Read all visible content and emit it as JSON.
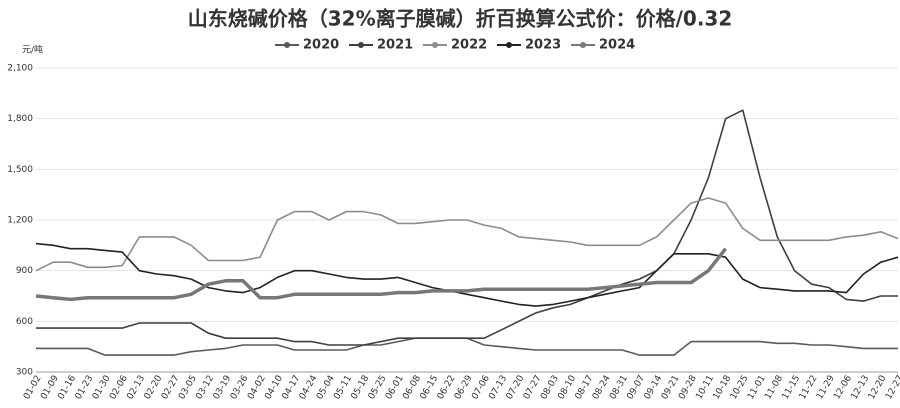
{
  "chart_data": {
    "type": "line",
    "title": "山东烧碱价格（32%离子膜碱）折百换算公式价：价格/0.32",
    "y_label": "元/吨",
    "categories": [
      "01-02",
      "01-09",
      "01-16",
      "01-23",
      "01-30",
      "02-06",
      "02-13",
      "02-20",
      "02-27",
      "03-05",
      "03-12",
      "03-19",
      "03-26",
      "04-02",
      "04-10",
      "04-17",
      "04-24",
      "05-04",
      "05-11",
      "05-18",
      "05-25",
      "06-01",
      "06-08",
      "06-15",
      "06-22",
      "06-29",
      "07-06",
      "07-13",
      "07-20",
      "07-27",
      "08-03",
      "08-10",
      "08-17",
      "08-24",
      "08-31",
      "09-07",
      "09-14",
      "09-21",
      "09-28",
      "10-11",
      "10-18",
      "10-25",
      "11-01",
      "11-08",
      "11-15",
      "11-22",
      "11-29",
      "12-06",
      "12-13",
      "12-20",
      "12-27"
    ],
    "series": [
      {
        "name": "2020",
        "color": "#5a5a5a",
        "values": [
          440,
          440,
          440,
          440,
          400,
          400,
          400,
          400,
          400,
          420,
          430,
          440,
          460,
          460,
          460,
          430,
          430,
          430,
          430,
          460,
          460,
          480,
          500,
          500,
          500,
          500,
          460,
          450,
          440,
          430,
          430,
          430,
          430,
          430,
          430,
          400,
          400,
          400,
          480,
          480,
          480,
          480,
          480,
          470,
          470,
          460,
          460,
          450,
          440,
          440,
          440
        ]
      },
      {
        "name": "2021",
        "color": "#3f3f3f",
        "values": [
          560,
          560,
          560,
          560,
          560,
          560,
          590,
          590,
          590,
          590,
          530,
          500,
          500,
          500,
          500,
          480,
          480,
          460,
          460,
          460,
          480,
          500,
          500,
          500,
          500,
          500,
          500,
          550,
          600,
          650,
          680,
          700,
          740,
          780,
          820,
          850,
          900,
          1000,
          1200,
          1450,
          1800,
          1850,
          1450,
          1100,
          900,
          820,
          800,
          730,
          720,
          750,
          750
        ]
      },
      {
        "name": "2022",
        "color": "#8c8c8c",
        "values": [
          900,
          950,
          950,
          920,
          920,
          930,
          1100,
          1100,
          1100,
          1050,
          960,
          960,
          960,
          980,
          1200,
          1250,
          1250,
          1200,
          1250,
          1250,
          1230,
          1180,
          1180,
          1190,
          1200,
          1200,
          1170,
          1150,
          1100,
          1090,
          1080,
          1070,
          1050,
          1050,
          1050,
          1050,
          1100,
          1200,
          1300,
          1330,
          1300,
          1150,
          1080,
          1080,
          1080,
          1080,
          1080,
          1100,
          1110,
          1130,
          1090
        ]
      },
      {
        "name": "2023",
        "color": "#222222",
        "values": [
          1060,
          1050,
          1030,
          1030,
          1020,
          1010,
          900,
          880,
          870,
          850,
          800,
          780,
          770,
          800,
          860,
          900,
          900,
          880,
          860,
          850,
          850,
          860,
          830,
          800,
          780,
          760,
          740,
          720,
          700,
          690,
          700,
          720,
          740,
          760,
          780,
          800,
          900,
          1000,
          1000,
          1000,
          980,
          850,
          800,
          790,
          780,
          780,
          780,
          770,
          880,
          950,
          980
        ]
      },
      {
        "name": "2024",
        "color": "#777777",
        "values": [
          750,
          740,
          730,
          740,
          740,
          740,
          740,
          740,
          740,
          760,
          820,
          840,
          840,
          740,
          740,
          760,
          760,
          760,
          760,
          760,
          760,
          770,
          770,
          780,
          780,
          780,
          790,
          790,
          790,
          790,
          790,
          790,
          790,
          800,
          810,
          820,
          830,
          830,
          830,
          900,
          1030,
          null,
          null,
          null,
          null,
          null,
          null,
          null,
          null,
          null,
          null
        ]
      }
    ],
    "ylim": [
      300,
      2100
    ],
    "yticks": [
      300,
      600,
      900,
      {
        "value": 1200,
        "label": "1,200"
      },
      {
        "value": 1500,
        "label": "1,500"
      },
      {
        "value": 1800,
        "label": "1,800"
      },
      {
        "value": 2100,
        "label": "2,100"
      }
    ],
    "grid": true,
    "legend": "top"
  }
}
